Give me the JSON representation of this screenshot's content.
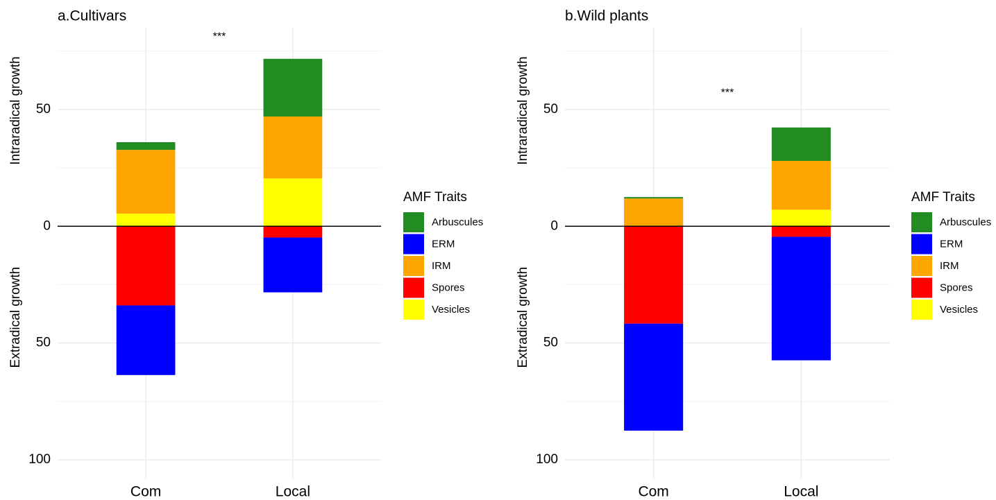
{
  "chart_data": [
    {
      "type": "bar",
      "stacked": true,
      "title": "a.Cultivars",
      "y_labels": [
        "Intraradical growth",
        "Extradical growth"
      ],
      "categories": [
        "Com",
        "Local"
      ],
      "series": [
        {
          "name": "Arbuscules",
          "color": "#228b22",
          "values": [
            3.3,
            24.7
          ]
        },
        {
          "name": "ERM",
          "color": "#0000ff",
          "values": [
            -29.8,
            -23.5
          ]
        },
        {
          "name": "IRM",
          "color": "#ffa500",
          "values": [
            27.3,
            26.5
          ]
        },
        {
          "name": "Spores",
          "color": "#ff0000",
          "values": [
            -33.9,
            -4.8
          ]
        },
        {
          "name": "Vesicles",
          "color": "#ffff00",
          "values": [
            5.4,
            20.5
          ]
        }
      ],
      "legend_title": "AMF Traits",
      "ylim": [
        -108,
        85
      ],
      "yticks": [
        {
          "value": -100,
          "label": "100"
        },
        {
          "value": -50,
          "label": "50"
        },
        0,
        50
      ],
      "yminor": [
        -75,
        -25,
        25,
        75
      ],
      "hline": 0,
      "grid": true,
      "annotations": [
        {
          "text": "***",
          "x": 1.5,
          "y": 81
        }
      ]
    },
    {
      "type": "bar",
      "stacked": true,
      "title": "b.Wild plants",
      "y_labels": [
        "Intraradical growth",
        "Extradical growth"
      ],
      "categories": [
        "Com",
        "Local"
      ],
      "series": [
        {
          "name": "Arbuscules",
          "color": "#228b22",
          "values": [
            0.6,
            14.3
          ]
        },
        {
          "name": "ERM",
          "color": "#0000ff",
          "values": [
            -45.8,
            -52.9
          ]
        },
        {
          "name": "IRM",
          "color": "#ffa500",
          "values": [
            11.9,
            20.9
          ]
        },
        {
          "name": "Spores",
          "color": "#ff0000",
          "values": [
            -41.7,
            -4.5
          ]
        },
        {
          "name": "Vesicles",
          "color": "#ffff00",
          "values": [
            0,
            7.1
          ]
        }
      ],
      "legend_title": "AMF Traits",
      "ylim": [
        -108,
        85
      ],
      "yticks": [
        {
          "value": -100,
          "label": "100"
        },
        {
          "value": -50,
          "label": "50"
        },
        0,
        50
      ],
      "yminor": [
        -75,
        -25,
        25,
        75
      ],
      "hline": 0,
      "grid": true,
      "annotations": [
        {
          "text": "***",
          "x": 1.5,
          "y": 57
        }
      ]
    }
  ]
}
